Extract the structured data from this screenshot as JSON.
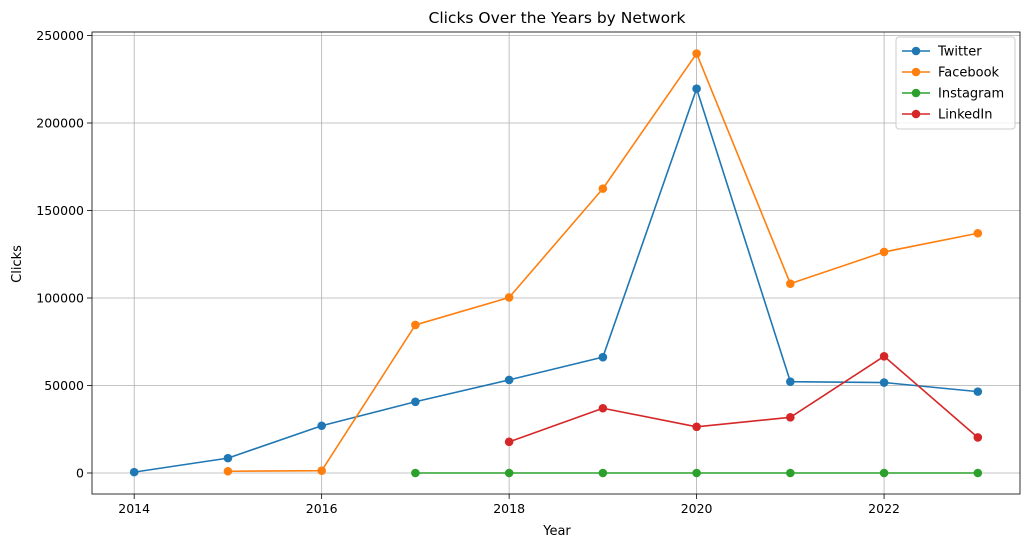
{
  "chart_data": {
    "type": "line",
    "title": "Clicks Over the Years by Network",
    "xlabel": "Year",
    "ylabel": "Clicks",
    "xlim": [
      2013.55,
      2023.45
    ],
    "ylim": [
      -12000,
      252000
    ],
    "xticks": [
      2014,
      2016,
      2018,
      2020,
      2022
    ],
    "yticks": [
      0,
      50000,
      100000,
      150000,
      200000,
      250000
    ],
    "grid": true,
    "legend_position": "top-right",
    "series": [
      {
        "name": "Twitter",
        "color": "#1f77b4",
        "x": [
          2014,
          2015,
          2016,
          2017,
          2018,
          2019,
          2020,
          2021,
          2022,
          2023
        ],
        "y": [
          500,
          8500,
          27000,
          40700,
          53200,
          66200,
          219600,
          52200,
          51700,
          46500
        ]
      },
      {
        "name": "Facebook",
        "color": "#ff7f0e",
        "x": [
          2015,
          2016,
          2017,
          2018,
          2019,
          2020,
          2021,
          2022,
          2023
        ],
        "y": [
          1000,
          1300,
          84600,
          100300,
          162500,
          239700,
          108200,
          126300,
          137000
        ]
      },
      {
        "name": "Instagram",
        "color": "#2ca02c",
        "x": [
          2017,
          2018,
          2019,
          2020,
          2021,
          2022,
          2023
        ],
        "y": [
          0,
          0,
          0,
          0,
          0,
          0,
          0
        ]
      },
      {
        "name": "LinkedIn",
        "color": "#d62728",
        "x": [
          2018,
          2019,
          2020,
          2021,
          2022,
          2023
        ],
        "y": [
          17800,
          37000,
          26400,
          31800,
          66700,
          20300
        ]
      }
    ]
  }
}
